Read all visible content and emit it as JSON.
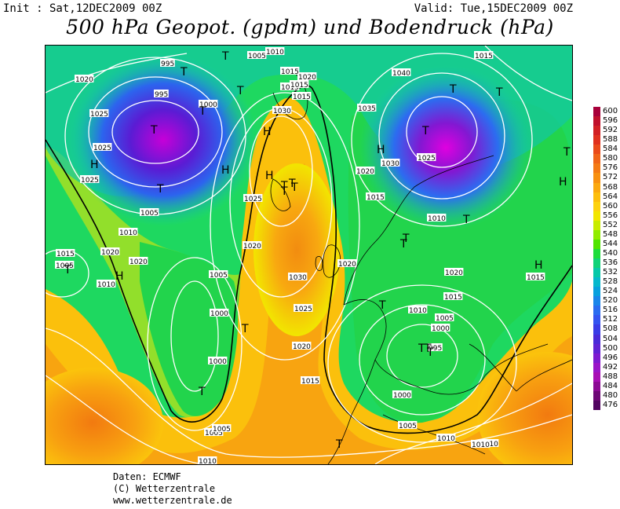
{
  "header": {
    "init": "Init : Sat,12DEC2009 00Z",
    "valid": "Valid: Tue,15DEC2009 00Z",
    "title": "500 hPa Geopot. (gpdm) und Bodendruck (hPa)"
  },
  "credits": {
    "line1": "Daten: ECMWF",
    "line2": "(C) Wetterzentrale",
    "line3": "www.wetterzentrale.de"
  },
  "legend": {
    "values": [
      "600",
      "596",
      "592",
      "588",
      "584",
      "580",
      "576",
      "572",
      "568",
      "564",
      "560",
      "556",
      "552",
      "548",
      "544",
      "540",
      "536",
      "532",
      "528",
      "524",
      "520",
      "516",
      "512",
      "508",
      "504",
      "500",
      "496",
      "492",
      "488",
      "484",
      "480",
      "476"
    ],
    "colors": [
      "#a8003a",
      "#c0102c",
      "#d22024",
      "#e0301e",
      "#ea4a1a",
      "#f06418",
      "#f47a14",
      "#f89010",
      "#fba80e",
      "#fdbe0c",
      "#fdd20e",
      "#f2e600",
      "#c8ec00",
      "#90ec00",
      "#50e400",
      "#1edc3c",
      "#10d278",
      "#06c8a8",
      "#06b8cc",
      "#08a0de",
      "#1a86ea",
      "#2a6cf0",
      "#3454f0",
      "#3a3ce6",
      "#4a2ad8",
      "#6022d4",
      "#7e1ad0",
      "#9a14c8",
      "#a80eb4",
      "#8c0a94",
      "#6e0876",
      "#520560"
    ]
  },
  "map": {
    "pressure_labels": [
      "995",
      "1005",
      "1010",
      "995",
      "1000",
      "1015",
      "1020",
      "1015",
      "1030",
      "1015",
      "1040",
      "1015",
      "1020",
      "1025",
      "1025",
      "1005",
      "1010",
      "1025",
      "1020",
      "1015",
      "1035",
      "1020",
      "1030",
      "1025",
      "1015",
      "1010",
      "1005",
      "1015",
      "1020",
      "1010",
      "1020",
      "1005",
      "1020",
      "1030",
      "1000",
      "1025",
      "1020",
      "1000",
      "1020",
      "1015",
      "1015",
      "1010",
      "1005",
      "1000",
      "995",
      "1000",
      "1005",
      "1005",
      "1010",
      "1010",
      "1010",
      "1005",
      "1010",
      "1015",
      "1025"
    ],
    "pressure_centers": [
      "T",
      "T",
      "T",
      "T",
      "T",
      "T",
      "T",
      "T",
      "T",
      "T",
      "T",
      "T",
      "T",
      "T",
      "T",
      "T",
      "H",
      "H",
      "H",
      "H",
      "H",
      "H",
      "H",
      "T",
      "T",
      "T",
      "T",
      "T",
      "H",
      "T",
      "T",
      "T",
      "T"
    ]
  }
}
